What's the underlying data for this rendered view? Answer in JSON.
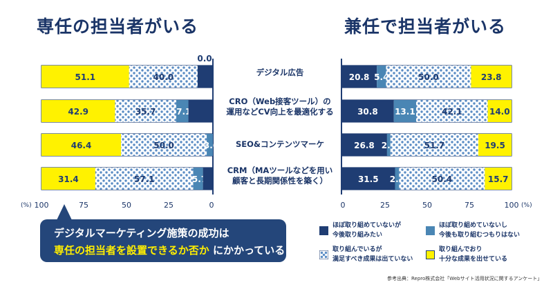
{
  "titles": {
    "left": "専任の担当者がいる",
    "right": "兼任で担当者がいる"
  },
  "colors": {
    "navy": "#1f3d73",
    "steel": "#4a86b4",
    "dots_bg": "#ffffff",
    "dots": "#5a8cc4",
    "yellow": "#fff200",
    "text": "#1a3467"
  },
  "categories": [
    {
      "line1": "デジタル広告",
      "line2": ""
    },
    {
      "line1": "CRO（Web接客ツール）の",
      "line2": "運用などCV向上を最適化する"
    },
    {
      "line1": "SEO&コンテンツマーケ",
      "line2": ""
    },
    {
      "line1": "CRM（MAツールなどを用い",
      "line2": "顧客と長期関係性を築く）"
    }
  ],
  "axis": {
    "left_ticks": [
      "100",
      "75",
      "50",
      "25",
      "0"
    ],
    "right_ticks": [
      "0",
      "25",
      "50",
      "75",
      "100"
    ],
    "unit": "(%)"
  },
  "legend": [
    {
      "key": "navy",
      "line1": "ほぼ取り組めていないが",
      "line2": "今後取り組みたい"
    },
    {
      "key": "steel",
      "line1": "ほぼ取り組めていないし",
      "line2": "今後も取り組むつもりはない"
    },
    {
      "key": "dots",
      "line1": "取り組んでいるが",
      "line2": "満足すべき成果は出ていない"
    },
    {
      "key": "yellow",
      "line1": "取り組んでおり",
      "line2": "十分な成果を出せている"
    }
  ],
  "callout": {
    "line1": "デジタルマーケティング施策の成功は",
    "line2_highlight": "専任の担当者を設置できるか否か",
    "line2_rest": "にかかっている"
  },
  "source": "参考出典：Repro株式会社「Webサイト活用状況に関するアンケート」",
  "chart_data": [
    {
      "type": "bar",
      "title": "専任の担当者がいる",
      "orientation": "horizontal-stacked",
      "xlim": [
        100,
        0
      ],
      "categories": [
        "デジタル広告",
        "CRO（Web接客ツール）の運用などCV向上を最適化する",
        "SEO&コンテンツマーケ",
        "CRM（MAツールなどを用い顧客と長期関係性を築く）"
      ],
      "series": [
        {
          "name": "取り組んでおり十分な成果を出せている",
          "key": "yellow",
          "values": [
            51.1,
            42.9,
            46.4,
            31.4
          ],
          "labels": [
            "51.1",
            "42.9",
            "46.4",
            "31.4"
          ]
        },
        {
          "name": "取り組んでいるが満足すべき成果は出ていない",
          "key": "dots",
          "values": [
            40.0,
            35.7,
            50.0,
            57.1
          ],
          "labels": [
            "40.0",
            "35.7",
            "50.0",
            "57.1"
          ]
        },
        {
          "name": "ほぼ取り組めていないし今後も取り組むつもりはない",
          "key": "steel",
          "values": [
            0.0,
            7.1,
            3.6,
            5.7
          ],
          "labels": [
            "0.0",
            "7.1",
            "3.6",
            "5.7"
          ]
        },
        {
          "name": "ほぼ取り組めていないが今後取り組みたい",
          "key": "navy",
          "values": [
            8.9,
            14.3,
            0.0,
            5.8
          ],
          "labels": [
            "",
            "",
            "",
            ""
          ]
        }
      ]
    },
    {
      "type": "bar",
      "title": "兼任で担当者がいる",
      "orientation": "horizontal-stacked",
      "xlim": [
        0,
        100
      ],
      "categories": [
        "デジタル広告",
        "CRO（Web接客ツール）の運用などCV向上を最適化する",
        "SEO&コンテンツマーケ",
        "CRM（MAツールなどを用い顧客と長期関係性を築く）"
      ],
      "series": [
        {
          "name": "ほぼ取り組めていないが今後取り組みたい",
          "key": "navy",
          "values": [
            20.8,
            30.8,
            26.8,
            31.5
          ],
          "labels": [
            "20.8",
            "30.8",
            "26.8",
            "31.5"
          ]
        },
        {
          "name": "ほぼ取り組めていないし今後も取り組むつもりはない",
          "key": "steel",
          "values": [
            5.4,
            13.1,
            2.0,
            2.4
          ],
          "labels": [
            "5.4",
            "13.1",
            "2.0",
            "2.4"
          ]
        },
        {
          "name": "取り組んでいるが満足すべき成果は出ていない",
          "key": "dots",
          "values": [
            50.0,
            42.1,
            51.7,
            50.4
          ],
          "labels": [
            "50.0",
            "42.1",
            "51.7",
            "50.4"
          ]
        },
        {
          "name": "取り組んでおり十分な成果を出せている",
          "key": "yellow",
          "values": [
            23.8,
            14.0,
            19.5,
            15.7
          ],
          "labels": [
            "23.8",
            "14.0",
            "19.5",
            "15.7"
          ]
        }
      ]
    }
  ]
}
